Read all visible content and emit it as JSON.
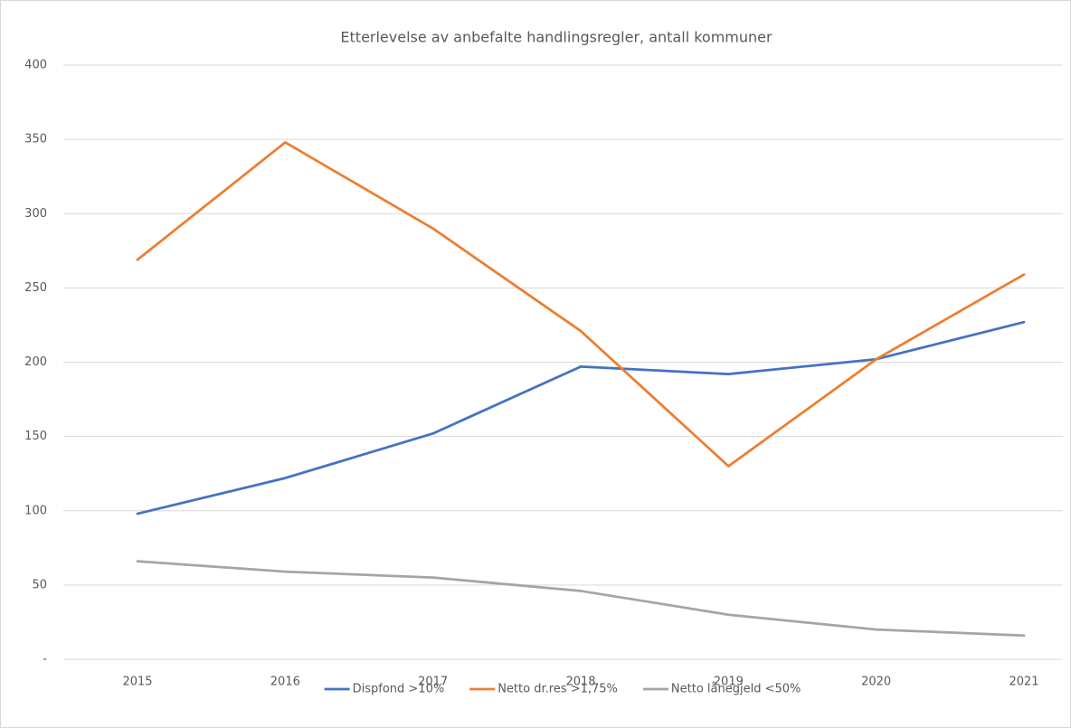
{
  "chart_data": {
    "type": "line",
    "title": "Etterlevelse av anbefalte handlingsregler, antall kommuner",
    "categories": [
      "2015",
      "2016",
      "2017",
      "2018",
      "2019",
      "2020",
      "2021"
    ],
    "series": [
      {
        "name": "Dispfond >10%",
        "color": "#4472c4",
        "values": [
          98,
          122,
          152,
          197,
          192,
          202,
          227
        ]
      },
      {
        "name": "Netto dr.res >1,75%",
        "color": "#ed7d31",
        "values": [
          269,
          348,
          290,
          221,
          130,
          202,
          259
        ]
      },
      {
        "name": "Netto lånegjeld <50%",
        "color": "#a5a5a5",
        "values": [
          66,
          59,
          55,
          46,
          30,
          20,
          16
        ]
      }
    ],
    "ylim": [
      0,
      400
    ],
    "yticks": [
      {
        "value": 0,
        "label": "-"
      },
      50,
      100,
      150,
      200,
      250,
      300,
      350,
      400
    ],
    "grid": true,
    "legend": "bottom"
  }
}
